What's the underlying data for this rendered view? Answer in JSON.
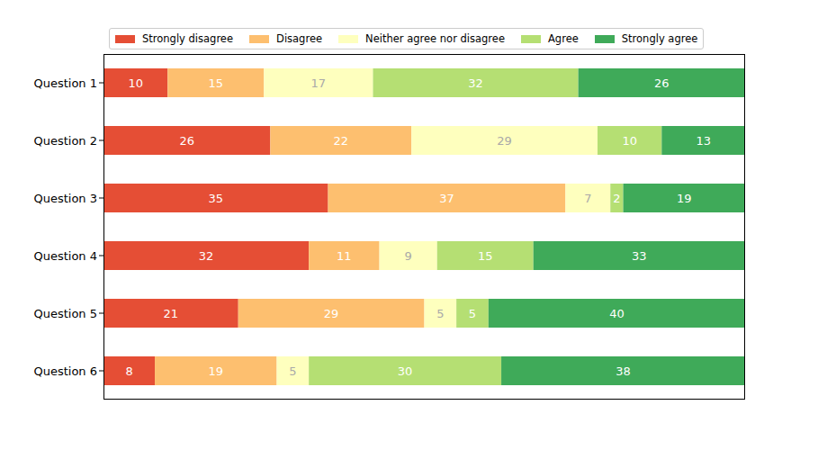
{
  "chart_data": {
    "type": "bar",
    "orientation": "horizontal",
    "stacked": true,
    "data_labels": true,
    "tick_labels": "y",
    "legend": "top",
    "categories": [
      "Question 1",
      "Question 2",
      "Question 3",
      "Question 4",
      "Question 5",
      "Question 6"
    ],
    "xlim": [
      0,
      100
    ],
    "series": [
      {
        "name": "Strongly disagree",
        "color": "#e54e35",
        "values": [
          10,
          26,
          35,
          32,
          21,
          8
        ]
      },
      {
        "name": "Disagree",
        "color": "#fdbf6f",
        "values": [
          15,
          22,
          37,
          11,
          29,
          19
        ]
      },
      {
        "name": "Neither agree nor disagree",
        "color": "#feffbe",
        "values": [
          17,
          29,
          7,
          9,
          5,
          5
        ]
      },
      {
        "name": "Agree",
        "color": "#b5df73",
        "values": [
          32,
          10,
          2,
          15,
          5,
          30
        ]
      },
      {
        "name": "Strongly agree",
        "color": "#3faa59",
        "values": [
          26,
          13,
          19,
          33,
          40,
          38
        ]
      }
    ]
  }
}
